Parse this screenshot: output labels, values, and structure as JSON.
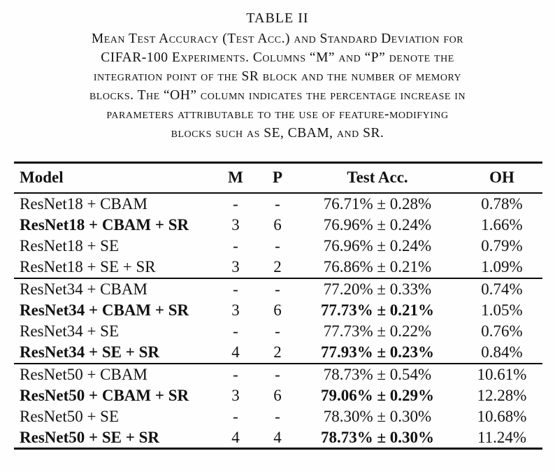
{
  "caption": {
    "label": "TABLE II",
    "lines": [
      "Mean Test Accuracy (Test Acc.) and Standard Deviation for",
      "CIFAR-100 Experiments. Columns “M” and “P” denote the",
      "integration point of the SR block and the number of memory",
      "blocks. The “OH” column indicates the percentage increase in",
      "parameters attributable to the use of feature-modifying",
      "blocks such as SE, CBAM, and SR."
    ]
  },
  "table": {
    "columns": [
      "Model",
      "M",
      "P",
      "Test Acc.",
      "OH"
    ],
    "groups": [
      {
        "name": "ResNet18",
        "rows": [
          {
            "model": "ResNet18 + CBAM",
            "bold_model": false,
            "m": "-",
            "p": "-",
            "acc": "76.71% ± 0.28%",
            "bold_acc": false,
            "oh": "0.78%"
          },
          {
            "model": "ResNet18 + CBAM + SR",
            "bold_model": true,
            "m": "3",
            "p": "6",
            "acc": "76.96% ± 0.24%",
            "bold_acc": false,
            "oh": "1.66%"
          },
          {
            "model": "ResNet18 + SE",
            "bold_model": false,
            "m": "-",
            "p": "-",
            "acc": "76.96% ± 0.24%",
            "bold_acc": false,
            "oh": "0.79%"
          },
          {
            "model": "ResNet18 + SE + SR",
            "bold_model": false,
            "m": "3",
            "p": "2",
            "acc": "76.86% ± 0.21%",
            "bold_acc": false,
            "oh": "1.09%"
          }
        ]
      },
      {
        "name": "ResNet34",
        "rows": [
          {
            "model": "ResNet34 + CBAM",
            "bold_model": false,
            "m": "-",
            "p": "-",
            "acc": "77.20% ± 0.33%",
            "bold_acc": false,
            "oh": "0.74%"
          },
          {
            "model": "ResNet34 + CBAM + SR",
            "bold_model": true,
            "m": "3",
            "p": "6",
            "acc": "77.73% ± 0.21%",
            "bold_acc": true,
            "oh": "1.05%"
          },
          {
            "model": "ResNet34 + SE",
            "bold_model": false,
            "m": "-",
            "p": "-",
            "acc": "77.73% ± 0.22%",
            "bold_acc": false,
            "oh": "0.76%"
          },
          {
            "model": "ResNet34 + SE + SR",
            "bold_model": true,
            "m": "4",
            "p": "2",
            "acc": "77.93% ± 0.23%",
            "bold_acc": true,
            "oh": "0.84%"
          }
        ]
      },
      {
        "name": "ResNet50",
        "rows": [
          {
            "model": "ResNet50 + CBAM",
            "bold_model": false,
            "m": "-",
            "p": "-",
            "acc": "78.73% ± 0.54%",
            "bold_acc": false,
            "oh": "10.61%"
          },
          {
            "model": "ResNet50 + CBAM + SR",
            "bold_model": true,
            "m": "3",
            "p": "6",
            "acc": "79.06% ± 0.29%",
            "bold_acc": true,
            "oh": "12.28%"
          },
          {
            "model": "ResNet50 + SE",
            "bold_model": false,
            "m": "-",
            "p": "-",
            "acc": "78.30% ± 0.30%",
            "bold_acc": false,
            "oh": "10.68%"
          },
          {
            "model": "ResNet50 + SE + SR",
            "bold_model": true,
            "m": "4",
            "p": "4",
            "acc": "78.73% ± 0.30%",
            "bold_acc": true,
            "oh": "11.24%"
          }
        ]
      }
    ]
  },
  "colors": {
    "text": "#121212",
    "rule": "#0a0a0a",
    "background": "#fefefe"
  }
}
